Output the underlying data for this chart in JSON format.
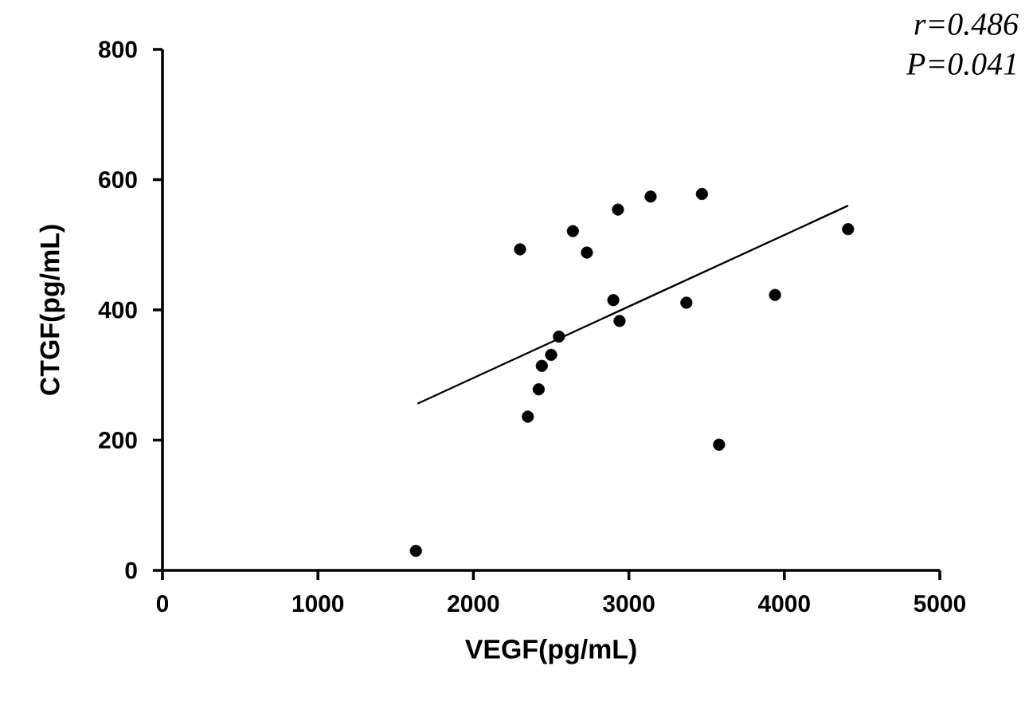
{
  "chart_data": {
    "type": "scatter",
    "xlabel": "VEGF(pg/mL)",
    "ylabel": "CTGF(pg/mL)",
    "annotations": [
      "r=0.486",
      "P=0.041"
    ],
    "xlim": [
      0,
      5000
    ],
    "xticks": [
      0,
      1000,
      2000,
      3000,
      4000,
      5000
    ],
    "ylim": [
      0,
      800
    ],
    "yticks": [
      0,
      200,
      400,
      600,
      800
    ],
    "grid": false,
    "series": [
      {
        "marker": "circle",
        "color": "#000000",
        "x": [
          1630,
          2300,
          2350,
          2420,
          2440,
          2500,
          2550,
          2640,
          2730,
          2900,
          2940,
          2930,
          3140,
          3370,
          3470,
          3580,
          3940,
          4410
        ],
        "values": [
          30,
          493,
          236,
          278,
          314,
          331,
          359,
          521,
          488,
          415,
          383,
          554,
          574,
          411,
          578,
          193,
          423,
          524
        ]
      },
      {
        "type": "line",
        "color": "#000000",
        "marker": "none",
        "line_style": "solid",
        "x": [
          1640,
          4410
        ],
        "values": [
          256,
          560
        ]
      }
    ]
  }
}
